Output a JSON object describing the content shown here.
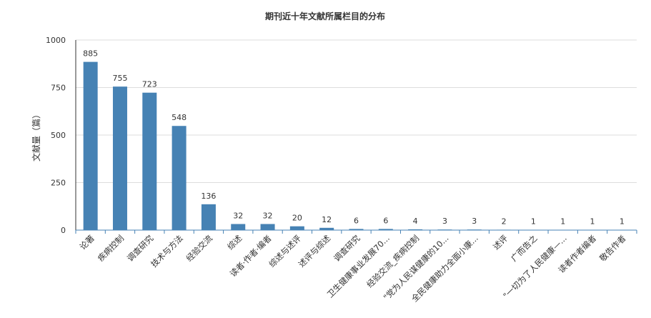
{
  "chart_data": {
    "type": "bar",
    "title": "期刊近十年文献所属栏目的分布",
    "ylabel": "文献量（篇）",
    "xlabel": "",
    "ylim": [
      0,
      1000
    ],
    "yticks": [
      0,
      250,
      500,
      750,
      1000
    ],
    "grid": true,
    "bar_color": "#4682b4",
    "categories": [
      "论著",
      "疾病控制",
      "调查研究",
      "技术与方法",
      "经验交流",
      "综述",
      "读者·作者·编者",
      "综述与述评",
      "述评与综述",
      "调查研究",
      "卫生健康事业发展70...",
      "经验交流_疾病控制",
      "\"党为人民谋健康的10...",
      "全民健康助力全面小康...",
      "述评",
      "广而告之",
      "\"一切为了人民健康—...",
      "读者作者编者",
      "敬告作者"
    ],
    "values": [
      885,
      755,
      723,
      548,
      136,
      32,
      32,
      20,
      12,
      6,
      6,
      4,
      3,
      3,
      2,
      1,
      1,
      1,
      1
    ]
  }
}
